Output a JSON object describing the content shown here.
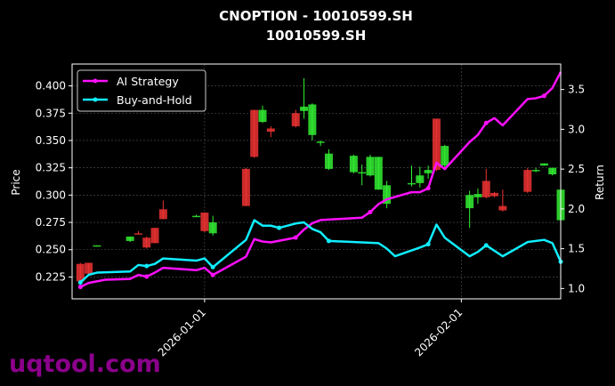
{
  "title_line1": "CNOPTION - 10010599.SH",
  "title_line2": "10010599.SH",
  "watermark": "uqtool.com",
  "colors": {
    "up": "#33ee33",
    "down": "#ee3333",
    "strategy": "#ff10ff",
    "bnh": "#10eeff",
    "grid": "#555555",
    "background": "#000000"
  },
  "chart_data": {
    "type": "candlestick+line",
    "title": "CNOPTION - 10010599.SH\n10010599.SH",
    "xlabel": "",
    "ylabel": "Price",
    "ylabel_right": "Return",
    "x_ticks": [
      "2026-01-01",
      "2026-02-01"
    ],
    "y_ticks_left": [
      0.225,
      0.25,
      0.275,
      0.3,
      0.325,
      0.35,
      0.375,
      0.4
    ],
    "y_ticks_right": [
      1.0,
      1.5,
      2.0,
      2.5,
      3.0,
      3.5
    ],
    "ylim_left": [
      0.205,
      0.42
    ],
    "ylim_right": [
      0.87,
      3.82
    ],
    "grid": true,
    "legend_position": "top-left",
    "candles": [
      {
        "date": "2025-12-17",
        "open": 0.237,
        "close": 0.221,
        "high": 0.238,
        "low": 0.218
      },
      {
        "date": "2025-12-18",
        "open": 0.238,
        "close": 0.228,
        "high": 0.238,
        "low": 0.226
      },
      {
        "date": "2025-12-19",
        "open": 0.253,
        "close": 0.254,
        "high": 0.254,
        "low": 0.253
      },
      {
        "date": "2025-12-23",
        "open": 0.258,
        "close": 0.262,
        "high": 0.262,
        "low": 0.257
      },
      {
        "date": "2025-12-24",
        "open": 0.265,
        "close": 0.264,
        "high": 0.267,
        "low": 0.264
      },
      {
        "date": "2025-12-25",
        "open": 0.261,
        "close": 0.252,
        "high": 0.262,
        "low": 0.251
      },
      {
        "date": "2025-12-26",
        "open": 0.27,
        "close": 0.256,
        "high": 0.27,
        "low": 0.256
      },
      {
        "date": "2025-12-27",
        "open": 0.287,
        "close": 0.278,
        "high": 0.295,
        "low": 0.278
      },
      {
        "date": "2025-12-31",
        "open": 0.281,
        "close": 0.281,
        "high": 0.282,
        "low": 0.28
      },
      {
        "date": "2026-01-01",
        "open": 0.284,
        "close": 0.267,
        "high": 0.284,
        "low": 0.266
      },
      {
        "date": "2026-01-02",
        "open": 0.265,
        "close": 0.275,
        "high": 0.281,
        "low": 0.263
      },
      {
        "date": "2026-01-06",
        "open": 0.324,
        "close": 0.29,
        "high": 0.325,
        "low": 0.29
      },
      {
        "date": "2026-01-07",
        "open": 0.378,
        "close": 0.335,
        "high": 0.378,
        "low": 0.334
      },
      {
        "date": "2026-01-08",
        "open": 0.367,
        "close": 0.378,
        "high": 0.382,
        "low": 0.366
      },
      {
        "date": "2026-01-09",
        "open": 0.361,
        "close": 0.358,
        "high": 0.363,
        "low": 0.353
      },
      {
        "date": "2026-01-12",
        "open": 0.375,
        "close": 0.363,
        "high": 0.378,
        "low": 0.362
      },
      {
        "date": "2026-01-13",
        "open": 0.377,
        "close": 0.381,
        "high": 0.407,
        "low": 0.37
      },
      {
        "date": "2026-01-14",
        "open": 0.355,
        "close": 0.383,
        "high": 0.384,
        "low": 0.35
      },
      {
        "date": "2026-01-15",
        "open": 0.348,
        "close": 0.349,
        "high": 0.35,
        "low": 0.345
      },
      {
        "date": "2026-01-16",
        "open": 0.324,
        "close": 0.338,
        "high": 0.342,
        "low": 0.323
      },
      {
        "date": "2026-01-19",
        "open": 0.321,
        "close": 0.336,
        "high": 0.337,
        "low": 0.32
      },
      {
        "date": "2026-01-20",
        "open": 0.32,
        "close": 0.321,
        "high": 0.328,
        "low": 0.309
      },
      {
        "date": "2026-01-21",
        "open": 0.318,
        "close": 0.335,
        "high": 0.337,
        "low": 0.317
      },
      {
        "date": "2026-01-22",
        "open": 0.305,
        "close": 0.335,
        "high": 0.335,
        "low": 0.305
      },
      {
        "date": "2026-01-23",
        "open": 0.292,
        "close": 0.309,
        "high": 0.313,
        "low": 0.288
      },
      {
        "date": "2026-01-26",
        "open": 0.31,
        "close": 0.311,
        "high": 0.327,
        "low": 0.308
      },
      {
        "date": "2026-01-27",
        "open": 0.311,
        "close": 0.318,
        "high": 0.326,
        "low": 0.307
      },
      {
        "date": "2026-01-28",
        "open": 0.32,
        "close": 0.323,
        "high": 0.327,
        "low": 0.315
      },
      {
        "date": "2026-01-29",
        "open": 0.37,
        "close": 0.323,
        "high": 0.37,
        "low": 0.322
      },
      {
        "date": "2026-01-30",
        "open": 0.327,
        "close": 0.345,
        "high": 0.346,
        "low": 0.325
      },
      {
        "date": "2026-02-02",
        "open": 0.288,
        "close": 0.3,
        "high": 0.304,
        "low": 0.27
      },
      {
        "date": "2026-02-03",
        "open": 0.298,
        "close": 0.301,
        "high": 0.306,
        "low": 0.292
      },
      {
        "date": "2026-02-04",
        "open": 0.313,
        "close": 0.298,
        "high": 0.324,
        "low": 0.297
      },
      {
        "date": "2026-02-05",
        "open": 0.302,
        "close": 0.299,
        "high": 0.303,
        "low": 0.298
      },
      {
        "date": "2026-02-06",
        "open": 0.29,
        "close": 0.286,
        "high": 0.305,
        "low": 0.285
      },
      {
        "date": "2026-02-09",
        "open": 0.323,
        "close": 0.303,
        "high": 0.325,
        "low": 0.302
      },
      {
        "date": "2026-02-10",
        "open": 0.323,
        "close": 0.323,
        "high": 0.325,
        "low": 0.321
      },
      {
        "date": "2026-02-11",
        "open": 0.327,
        "close": 0.329,
        "high": 0.329,
        "low": 0.327
      },
      {
        "date": "2026-02-12",
        "open": 0.319,
        "close": 0.325,
        "high": 0.325,
        "low": 0.318
      },
      {
        "date": "2026-02-13",
        "open": 0.277,
        "close": 0.305,
        "high": 0.306,
        "low": 0.276
      }
    ],
    "series": [
      {
        "name": "AI Strategy",
        "right_axis": true,
        "points": [
          [
            "2025-12-17",
            1.02
          ],
          [
            "2025-12-18",
            1.07
          ],
          [
            "2025-12-20",
            1.11
          ],
          [
            "2025-12-23",
            1.12
          ],
          [
            "2025-12-24",
            1.17
          ],
          [
            "2025-12-25",
            1.15
          ],
          [
            "2025-12-26",
            1.2
          ],
          [
            "2025-12-27",
            1.26
          ],
          [
            "2025-12-31",
            1.23
          ],
          [
            "2026-01-01",
            1.26
          ],
          [
            "2026-01-02",
            1.17
          ],
          [
            "2026-01-06",
            1.4
          ],
          [
            "2026-01-07",
            1.62
          ],
          [
            "2026-01-08",
            1.59
          ],
          [
            "2026-01-09",
            1.58
          ],
          [
            "2026-01-12",
            1.64
          ],
          [
            "2026-01-13",
            1.74
          ],
          [
            "2026-01-14",
            1.82
          ],
          [
            "2026-01-15",
            1.86
          ],
          [
            "2026-01-20",
            1.89
          ],
          [
            "2026-01-21",
            1.96
          ],
          [
            "2026-01-22",
            2.06
          ],
          [
            "2026-01-23",
            2.12
          ],
          [
            "2026-01-26",
            2.21
          ],
          [
            "2026-01-27",
            2.21
          ],
          [
            "2026-01-28",
            2.26
          ],
          [
            "2026-01-29",
            2.58
          ],
          [
            "2026-01-30",
            2.5
          ],
          [
            "2026-02-02",
            2.84
          ],
          [
            "2026-02-03",
            2.93
          ],
          [
            "2026-02-04",
            3.08
          ],
          [
            "2026-02-05",
            3.14
          ],
          [
            "2026-02-06",
            3.05
          ],
          [
            "2026-02-09",
            3.38
          ],
          [
            "2026-02-10",
            3.39
          ],
          [
            "2026-02-11",
            3.42
          ],
          [
            "2026-02-12",
            3.52
          ],
          [
            "2026-02-13",
            3.72
          ]
        ]
      },
      {
        "name": "Buy-and-Hold",
        "right_axis": false,
        "points": [
          [
            "2025-12-17",
            0.22
          ],
          [
            "2025-12-18",
            0.227
          ],
          [
            "2025-12-19",
            0.229
          ],
          [
            "2025-12-23",
            0.23
          ],
          [
            "2025-12-24",
            0.236
          ],
          [
            "2025-12-25",
            0.235
          ],
          [
            "2025-12-26",
            0.237
          ],
          [
            "2025-12-27",
            0.242
          ],
          [
            "2025-12-31",
            0.24
          ],
          [
            "2026-01-01",
            0.242
          ],
          [
            "2026-01-02",
            0.234
          ],
          [
            "2026-01-06",
            0.259
          ],
          [
            "2026-01-07",
            0.277
          ],
          [
            "2026-01-08",
            0.272
          ],
          [
            "2026-01-09",
            0.272
          ],
          [
            "2026-01-10",
            0.27
          ],
          [
            "2026-01-12",
            0.274
          ],
          [
            "2026-01-13",
            0.275
          ],
          [
            "2026-01-14",
            0.269
          ],
          [
            "2026-01-15",
            0.266
          ],
          [
            "2026-01-16",
            0.258
          ],
          [
            "2026-01-22",
            0.256
          ],
          [
            "2026-01-23",
            0.251
          ],
          [
            "2026-01-24",
            0.244
          ],
          [
            "2026-01-27",
            0.252
          ],
          [
            "2026-01-28",
            0.255
          ],
          [
            "2026-01-29",
            0.273
          ],
          [
            "2026-01-30",
            0.261
          ],
          [
            "2026-02-02",
            0.244
          ],
          [
            "2026-02-03",
            0.248
          ],
          [
            "2026-02-04",
            0.254
          ],
          [
            "2026-02-06",
            0.244
          ],
          [
            "2026-02-09",
            0.257
          ],
          [
            "2026-02-11",
            0.259
          ],
          [
            "2026-02-12",
            0.256
          ],
          [
            "2026-02-13",
            0.239
          ]
        ]
      }
    ]
  }
}
